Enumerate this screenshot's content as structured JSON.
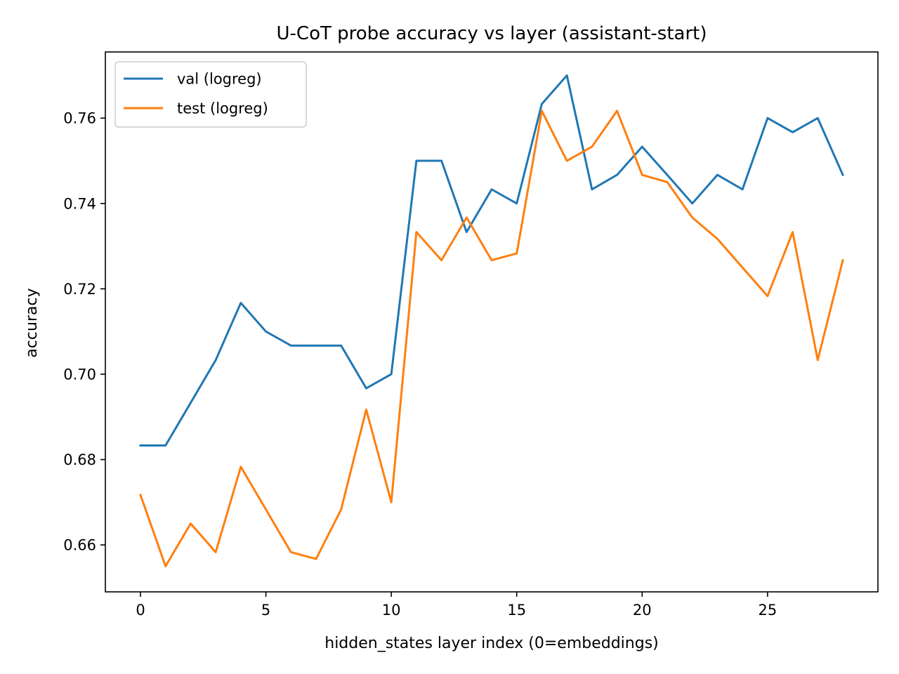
{
  "chart_data": {
    "type": "line",
    "title": "U-CoT probe accuracy vs layer (assistant-start)",
    "xlabel": "hidden_states layer index (0=embeddings)",
    "ylabel": "accuracy",
    "xlim": [
      -1.4,
      29.4
    ],
    "ylim": [
      0.649,
      0.7755
    ],
    "xticks": [
      0,
      5,
      10,
      15,
      20,
      25
    ],
    "yticks": [
      0.66,
      0.68,
      0.7,
      0.72,
      0.74,
      0.76
    ],
    "xtick_labels": [
      "0",
      "5",
      "10",
      "15",
      "20",
      "25"
    ],
    "ytick_labels": [
      "0.66",
      "0.68",
      "0.70",
      "0.72",
      "0.74",
      "0.76"
    ],
    "grid": false,
    "legend": "top-left",
    "x": [
      0,
      1,
      2,
      3,
      4,
      5,
      6,
      7,
      8,
      9,
      10,
      11,
      12,
      13,
      14,
      15,
      16,
      17,
      18,
      19,
      20,
      21,
      22,
      23,
      24,
      25,
      26,
      27,
      28
    ],
    "series": [
      {
        "name": "val (logreg)",
        "color": "#1f77b4",
        "values": [
          0.6833,
          0.6833,
          0.6933,
          0.7033,
          0.7167,
          0.71,
          0.7067,
          0.7067,
          0.7067,
          0.6967,
          0.7,
          0.75,
          0.75,
          0.7333,
          0.7433,
          0.74,
          0.7633,
          0.77,
          0.7433,
          0.7467,
          0.7533,
          0.7467,
          0.74,
          0.7467,
          0.7433,
          0.76,
          0.7567,
          0.76,
          0.7467
        ]
      },
      {
        "name": "test (logreg)",
        "color": "#ff7f0e",
        "values": [
          0.6717,
          0.655,
          0.665,
          0.6583,
          0.6783,
          0.6683,
          0.6583,
          0.6567,
          0.6683,
          0.6917,
          0.67,
          0.7333,
          0.7267,
          0.7367,
          0.7267,
          0.7283,
          0.7617,
          0.75,
          0.7533,
          0.7617,
          0.7467,
          0.745,
          0.7367,
          0.7317,
          0.725,
          0.7183,
          0.7333,
          0.7033,
          0.7267
        ]
      }
    ]
  }
}
